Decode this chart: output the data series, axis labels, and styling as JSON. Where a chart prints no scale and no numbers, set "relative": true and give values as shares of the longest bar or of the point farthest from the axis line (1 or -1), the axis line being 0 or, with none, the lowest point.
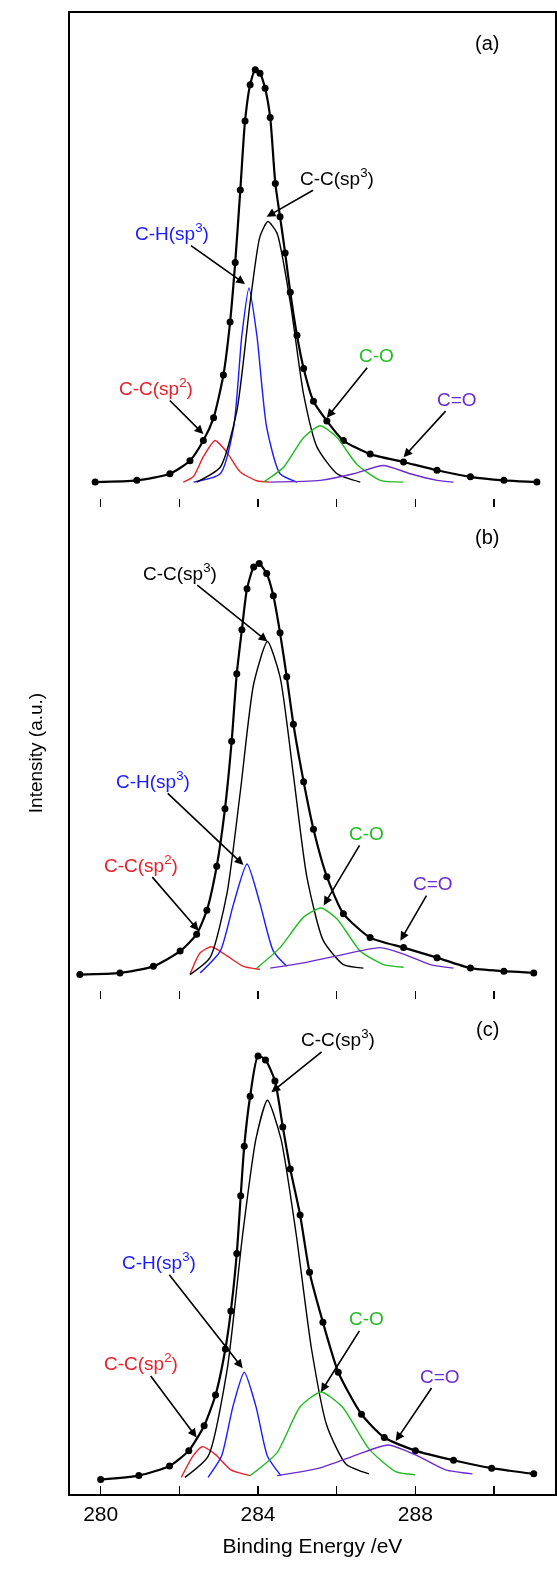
{
  "chart_data": [
    {
      "type": "line",
      "relative": true,
      "tick_labels": false,
      "xlim": [
        279.22,
        291.55
      ],
      "xticks": [
        280,
        {
          "value": 282,
          "label": null
        },
        284,
        {
          "value": 286,
          "label": null
        },
        288,
        {
          "value": 290,
          "label": null
        }
      ],
      "annotations": [
        "(a)",
        {
          "text": "C-C(sp$^{2}$)",
          "x": 282.61,
          "y": 0.167
        },
        {
          "text": "C-H(sp$^{3}$)",
          "x": 283.67,
          "y": 0.51
        },
        {
          "text": "C-C(sp$^{3}$)",
          "x": 284.22,
          "y": 0.664
        },
        {
          "text": "C-O",
          "x": 285.75,
          "y": 0.204
        },
        {
          "text": "C=O",
          "x": 287.7,
          "y": 0.114
        }
      ],
      "series": [
        {
          "color": "#000000",
          "marker": "circle",
          "x": [
            279.86,
            280.92,
            281.76,
            282.27,
            282.61,
            282.87,
            283.12,
            283.29,
            283.42,
            283.55,
            283.67,
            283.8,
            283.93,
            284.05,
            284.18,
            284.31,
            284.44,
            284.56,
            284.69,
            284.82,
            284.99,
            285.16,
            285.41,
            285.75,
            286.17,
            286.85,
            287.7,
            288.55,
            289.4,
            290.25,
            291.09
          ],
          "values": [
            0.057,
            0.061,
            0.076,
            0.106,
            0.152,
            0.204,
            0.302,
            0.423,
            0.559,
            0.725,
            0.883,
            0.966,
            1.0,
            0.992,
            0.958,
            0.891,
            0.74,
            0.664,
            0.581,
            0.491,
            0.393,
            0.317,
            0.242,
            0.197,
            0.152,
            0.121,
            0.103,
            0.084,
            0.069,
            0.061,
            0.057
          ]
        },
        {
          "color": "#e8202a",
          "marker": "none",
          "x": [
            282.1,
            282.36,
            282.61,
            282.91,
            283.21,
            283.55,
            283.97,
            284.31
          ],
          "values": [
            0.057,
            0.07,
            0.115,
            0.152,
            0.125,
            0.08,
            0.06,
            0.057
          ]
        },
        {
          "color": "#1a1aff",
          "marker": "none",
          "x": [
            282.36,
            283.04,
            283.38,
            283.59,
            283.77,
            283.97,
            284.22,
            284.56,
            284.99
          ],
          "values": [
            0.057,
            0.076,
            0.182,
            0.393,
            0.501,
            0.393,
            0.182,
            0.076,
            0.057
          ]
        },
        {
          "color": "#000000",
          "marker": "none",
          "x": [
            282.44,
            283.04,
            283.46,
            283.8,
            284.05,
            284.25,
            284.48,
            284.82,
            285.16,
            285.5,
            286.01,
            286.6
          ],
          "values": [
            0.057,
            0.091,
            0.219,
            0.468,
            0.619,
            0.653,
            0.627,
            0.468,
            0.257,
            0.137,
            0.076,
            0.057
          ]
        },
        {
          "color": "#22bb22",
          "marker": "none",
          "x": [
            284.14,
            284.65,
            285.16,
            285.58,
            286.01,
            286.51,
            287.11,
            287.7
          ],
          "values": [
            0.057,
            0.091,
            0.159,
            0.186,
            0.159,
            0.098,
            0.061,
            0.057
          ]
        },
        {
          "color": "#6a2bd0",
          "marker": "none",
          "x": [
            284.31,
            285.58,
            286.43,
            287.19,
            287.87,
            288.55,
            288.97
          ],
          "values": [
            0.057,
            0.061,
            0.076,
            0.095,
            0.076,
            0.061,
            0.057
          ]
        }
      ]
    },
    {
      "type": "line",
      "relative": true,
      "tick_labels": false,
      "ylabel": "Intensity (a.u.)",
      "xlim": [
        279.22,
        291.55
      ],
      "xticks": [
        280,
        {
          "value": 282,
          "label": null
        },
        284,
        {
          "value": 286,
          "label": null
        },
        288,
        {
          "value": 290,
          "label": null
        }
      ],
      "annotations": [
        "(b)",
        {
          "text": "C-C(sp$^{2}$)",
          "x": 282.49,
          "y": 0.157
        },
        {
          "text": "C-H(sp$^{3}$)",
          "x": 283.63,
          "y": 0.308
        },
        {
          "text": "C-C(sp$^{3}$)",
          "x": 284.24,
          "y": 0.821
        },
        {
          "text": "C-O",
          "x": 285.67,
          "y": 0.215
        },
        {
          "text": "C=O",
          "x": 287.62,
          "y": 0.134
        }
      ],
      "series": [
        {
          "color": "#000000",
          "marker": "circle",
          "x": [
            279.47,
            280.49,
            281.34,
            282.02,
            282.44,
            282.7,
            282.95,
            283.16,
            283.33,
            283.46,
            283.59,
            283.72,
            283.89,
            284.03,
            284.22,
            284.39,
            284.56,
            284.73,
            284.9,
            285.16,
            285.41,
            285.75,
            286.17,
            286.85,
            287.7,
            288.55,
            289.4,
            290.25,
            291.01
          ],
          "values": [
            0.056,
            0.06,
            0.075,
            0.11,
            0.149,
            0.204,
            0.305,
            0.437,
            0.592,
            0.747,
            0.848,
            0.942,
            0.992,
            1.0,
            0.977,
            0.926,
            0.841,
            0.74,
            0.631,
            0.499,
            0.39,
            0.281,
            0.196,
            0.141,
            0.118,
            0.095,
            0.071,
            0.064,
            0.06
          ]
        },
        {
          "color": "#e8202a",
          "marker": "none",
          "x": [
            282.27,
            282.53,
            282.82,
            283.21,
            283.63,
            284.05
          ],
          "values": [
            0.056,
            0.106,
            0.12,
            0.099,
            0.075,
            0.068
          ]
        },
        {
          "color": "#1a1aff",
          "marker": "none",
          "x": [
            282.53,
            283.04,
            283.38,
            283.72,
            284.05,
            284.39,
            284.73
          ],
          "values": [
            0.06,
            0.11,
            0.219,
            0.31,
            0.219,
            0.11,
            0.075
          ]
        },
        {
          "color": "#000000",
          "marker": "none",
          "x": [
            282.27,
            282.78,
            283.21,
            283.55,
            283.89,
            284.24,
            284.56,
            284.9,
            285.24,
            285.66,
            286.17,
            286.68
          ],
          "values": [
            0.056,
            0.095,
            0.242,
            0.476,
            0.724,
            0.821,
            0.74,
            0.514,
            0.281,
            0.134,
            0.079,
            0.071
          ]
        },
        {
          "color": "#22bb22",
          "marker": "none",
          "x": [
            283.97,
            284.56,
            285.16,
            285.6,
            286.01,
            286.6,
            287.19,
            287.7
          ],
          "values": [
            0.071,
            0.118,
            0.188,
            0.209,
            0.184,
            0.11,
            0.079,
            0.073
          ]
        },
        {
          "color": "#6a2bd0",
          "marker": "none",
          "x": [
            284.31,
            285.16,
            286.01,
            287.11,
            287.7,
            288.38,
            288.97
          ],
          "values": [
            0.071,
            0.083,
            0.099,
            0.118,
            0.103,
            0.079,
            0.071
          ]
        }
      ]
    },
    {
      "type": "line",
      "relative": true,
      "tick_labels": "x",
      "xlabel": "Binding Energy /eV",
      "xlim": [
        279.22,
        291.55
      ],
      "xticks": [
        280,
        {
          "value": 282,
          "label": null
        },
        284,
        {
          "value": 286,
          "label": null
        },
        288,
        {
          "value": 290,
          "label": null
        }
      ],
      "annotations": [
        "(c)",
        {
          "text": "C-C(sp$^{2}$)",
          "x": 282.44,
          "y": 0.129
        },
        {
          "text": "C-H(sp$^{3}$)",
          "x": 283.61,
          "y": 0.287
        },
        {
          "text": "C-C(sp$^{3}$)",
          "x": 284.34,
          "y": 0.917
        },
        {
          "text": "C-O",
          "x": 285.6,
          "y": 0.233
        },
        {
          "text": "C=O",
          "x": 287.5,
          "y": 0.121
        }
      ],
      "series": [
        {
          "color": "#000000",
          "marker": "circle",
          "x": [
            280.0,
            280.97,
            281.75,
            282.24,
            282.63,
            282.92,
            283.17,
            283.31,
            283.46,
            283.56,
            283.65,
            283.8,
            284.0,
            284.19,
            284.43,
            284.63,
            284.82,
            285.07,
            285.31,
            285.65,
            286.04,
            286.63,
            287.21,
            288.0,
            288.97,
            289.94,
            291.01
          ],
          "values": [
            0.033,
            0.042,
            0.064,
            0.099,
            0.156,
            0.226,
            0.331,
            0.418,
            0.549,
            0.681,
            0.794,
            0.908,
            1.0,
            0.991,
            0.943,
            0.838,
            0.742,
            0.637,
            0.506,
            0.392,
            0.278,
            0.182,
            0.129,
            0.099,
            0.077,
            0.059,
            0.046
          ]
        },
        {
          "color": "#e8202a",
          "marker": "none",
          "x": [
            282.05,
            282.34,
            282.58,
            282.92,
            283.31,
            283.8
          ],
          "values": [
            0.038,
            0.086,
            0.108,
            0.09,
            0.055,
            0.042
          ]
        },
        {
          "color": "#1a1aff",
          "marker": "none",
          "x": [
            282.73,
            283.07,
            283.36,
            283.65,
            283.95,
            284.24,
            284.58
          ],
          "values": [
            0.038,
            0.086,
            0.199,
            0.278,
            0.199,
            0.086,
            0.042
          ]
        },
        {
          "color": "#000000",
          "marker": "none",
          "x": [
            282.14,
            282.73,
            283.22,
            283.61,
            283.95,
            284.24,
            284.58,
            284.97,
            285.36,
            285.75,
            286.24,
            286.82
          ],
          "values": [
            0.038,
            0.086,
            0.287,
            0.593,
            0.812,
            0.899,
            0.812,
            0.593,
            0.331,
            0.156,
            0.068,
            0.046
          ]
        },
        {
          "color": "#22bb22",
          "marker": "none",
          "x": [
            283.8,
            284.48,
            285.07,
            285.6,
            286.14,
            286.82,
            287.5,
            287.99
          ],
          "values": [
            0.042,
            0.094,
            0.199,
            0.233,
            0.199,
            0.103,
            0.051,
            0.044
          ]
        },
        {
          "color": "#6a2bd0",
          "marker": "none",
          "x": [
            284.48,
            285.56,
            286.53,
            287.31,
            287.99,
            288.77,
            289.45
          ],
          "values": [
            0.042,
            0.059,
            0.09,
            0.112,
            0.09,
            0.055,
            0.046
          ]
        }
      ]
    }
  ]
}
